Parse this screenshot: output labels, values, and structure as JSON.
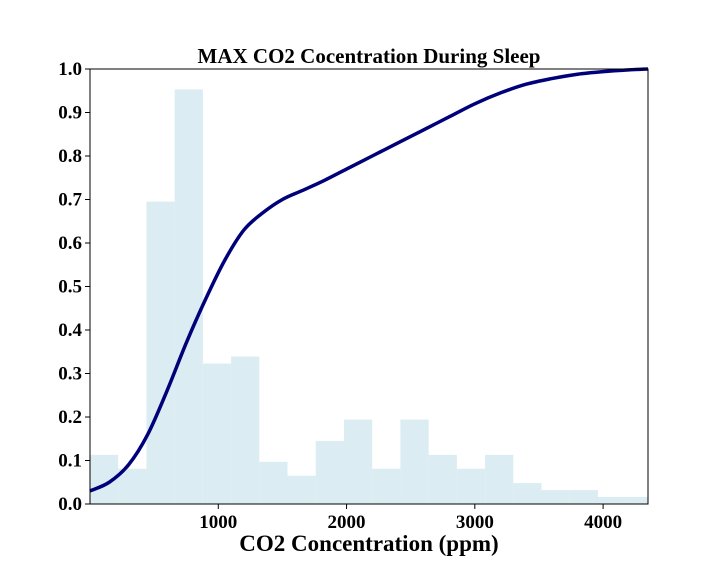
{
  "chart_data": {
    "type": "bar",
    "title": "MAX CO2 Cocentration During Sleep",
    "xlabel": "CO2 Concentration (ppm)",
    "ylabel": "",
    "xlim": [
      0,
      4350
    ],
    "ylim": [
      0,
      1.0
    ],
    "xticks": [
      1000,
      2000,
      3000,
      4000
    ],
    "yticks": [
      0.0,
      0.1,
      0.2,
      0.3,
      0.4,
      0.5,
      0.6,
      0.7,
      0.8,
      0.9,
      1.0
    ],
    "grid": false,
    "histogram": {
      "bin_edges": [
        0,
        220,
        440,
        660,
        880,
        1100,
        1320,
        1540,
        1760,
        1980,
        2200,
        2420,
        2640,
        2860,
        3080,
        3300,
        3520,
        3740,
        3960,
        4180,
        4350
      ],
      "values": [
        0.113,
        0.081,
        0.695,
        0.953,
        0.323,
        0.339,
        0.097,
        0.065,
        0.145,
        0.194,
        0.081,
        0.194,
        0.113,
        0.081,
        0.113,
        0.048,
        0.032,
        0.032,
        0.016,
        0.016
      ],
      "color": "#dbecf3"
    },
    "cumulative_curve": {
      "x": [
        0,
        150,
        300,
        450,
        600,
        750,
        900,
        1050,
        1200,
        1350,
        1500,
        1650,
        1800,
        2000,
        2200,
        2400,
        2600,
        2800,
        3000,
        3200,
        3400,
        3600,
        3800,
        4000,
        4200,
        4350
      ],
      "y": [
        0.03,
        0.05,
        0.09,
        0.16,
        0.26,
        0.37,
        0.47,
        0.56,
        0.63,
        0.67,
        0.7,
        0.72,
        0.74,
        0.77,
        0.8,
        0.83,
        0.86,
        0.89,
        0.92,
        0.945,
        0.965,
        0.978,
        0.988,
        0.994,
        0.998,
        1.0
      ],
      "color": "#00007a"
    }
  }
}
